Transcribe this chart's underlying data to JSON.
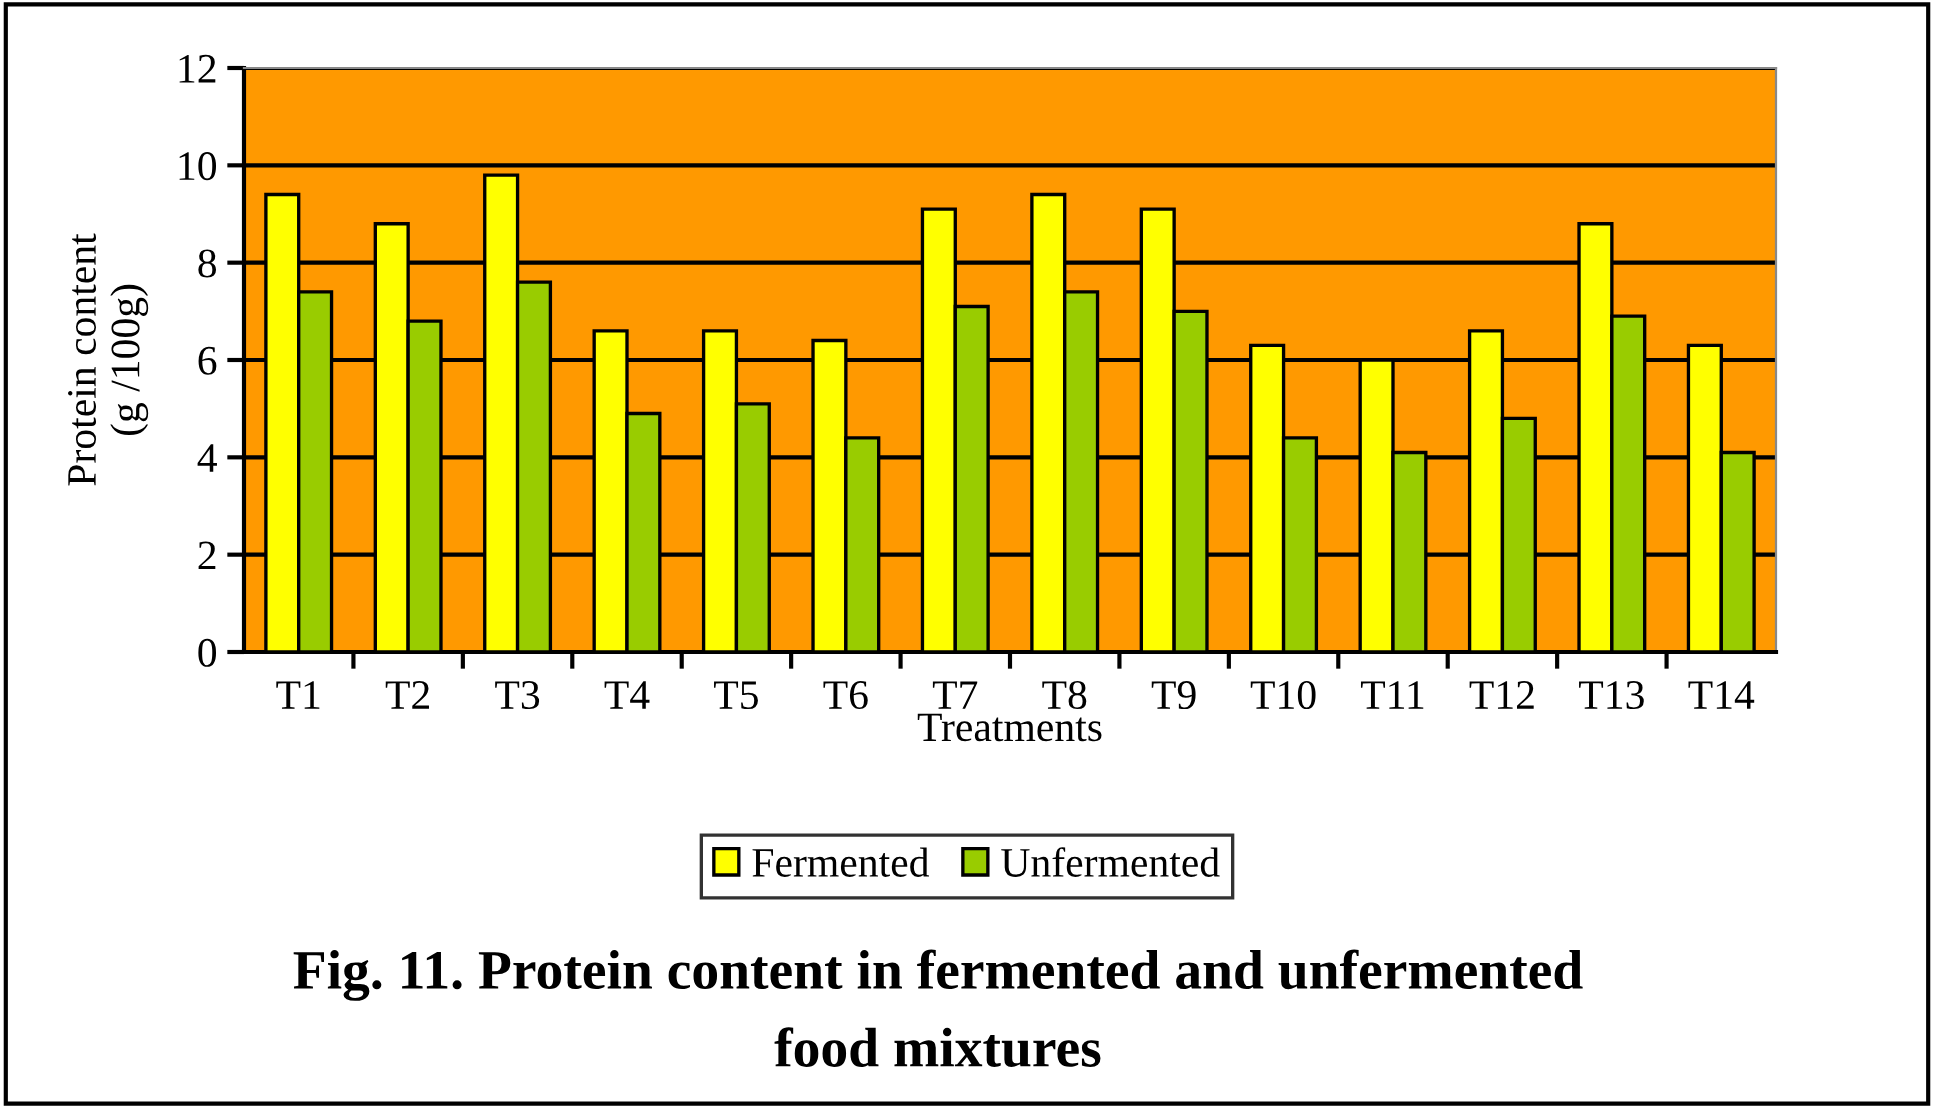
{
  "chart_data": {
    "type": "bar",
    "title": "Fig. 11. Protein content in fermented and unfermented\nfood mixtures",
    "xlabel": "Treatments",
    "ylabel": "Protein content\n(g /100g)",
    "categories": [
      "T1",
      "T2",
      "T3",
      "T4",
      "T5",
      "T6",
      "T7",
      "T8",
      "T9",
      "T10",
      "T11",
      "T12",
      "T13",
      "T14"
    ],
    "series": [
      {
        "name": "Fermented",
        "color": "#ffff00",
        "values": [
          9.4,
          8.8,
          9.8,
          6.6,
          6.6,
          6.4,
          9.1,
          9.4,
          9.1,
          6.3,
          6.0,
          6.6,
          8.8,
          6.3
        ]
      },
      {
        "name": "Unfermented",
        "color": "#99cc00",
        "values": [
          7.4,
          6.8,
          7.6,
          4.9,
          5.1,
          4.4,
          7.1,
          7.4,
          7.0,
          4.4,
          4.1,
          4.8,
          6.9,
          4.1
        ]
      }
    ],
    "ylim": [
      0,
      12
    ],
    "yticks": [
      0,
      2,
      4,
      6,
      8,
      10,
      12
    ],
    "grid": "y",
    "legend": "bottom"
  }
}
